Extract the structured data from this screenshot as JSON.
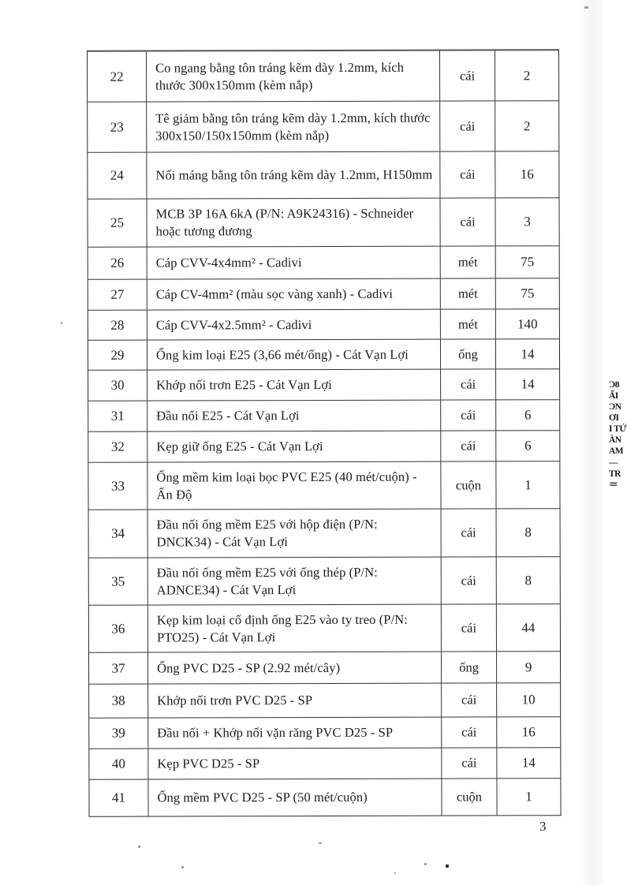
{
  "page": {
    "number": "3"
  },
  "table": {
    "rows": [
      {
        "no": "22",
        "desc": "Co ngang bằng tôn tráng kẽm dày 1.2mm, kích thước 300x150mm (kèm nắp)",
        "unit": "cái",
        "qty": "2"
      },
      {
        "no": "23",
        "desc": "Tê giảm bằng tôn tráng kẽm dày 1.2mm, kích thước 300x150/150x150mm (kèm nắp)",
        "unit": "cái",
        "qty": "2"
      },
      {
        "no": "24",
        "desc": "Nối máng bằng tôn tráng kẽm dày 1.2mm, H150mm",
        "unit": "cái",
        "qty": "16"
      },
      {
        "no": "25",
        "desc": "MCB 3P 16A 6kA (P/N: A9K24316) - Schneider hoặc tương đương",
        "unit": "cái",
        "qty": "3"
      },
      {
        "no": "26",
        "desc": "Cáp CVV-4x4mm² - Cadivi",
        "unit": "mét",
        "qty": "75"
      },
      {
        "no": "27",
        "desc": "Cáp CV-4mm² (màu sọc vàng xanh) - Cadivi",
        "unit": "mét",
        "qty": "75"
      },
      {
        "no": "28",
        "desc": "Cáp CVV-4x2.5mm² - Cadivi",
        "unit": "mét",
        "qty": "140"
      },
      {
        "no": "29",
        "desc": "Ống kim loại E25 (3,66 mét/ống) - Cát Vạn Lợi",
        "unit": "ống",
        "qty": "14"
      },
      {
        "no": "30",
        "desc": "Khớp nối trơn E25 - Cát Vạn Lợi",
        "unit": "cái",
        "qty": "14"
      },
      {
        "no": "31",
        "desc": "Đầu nối E25 - Cát Vạn Lợi",
        "unit": "cái",
        "qty": "6"
      },
      {
        "no": "32",
        "desc": "Kẹp giữ ống E25 - Cát Vạn Lợi",
        "unit": "cái",
        "qty": "6"
      },
      {
        "no": "33",
        "desc": "Ống mềm kim loại bọc PVC E25 (40 mét/cuộn) - Ấn Độ",
        "unit": "cuộn",
        "qty": "1"
      },
      {
        "no": "34",
        "desc": "Đầu nối ống mềm E25 với hộp điện (P/N: DNCK34) - Cát Vạn Lợi",
        "unit": "cái",
        "qty": "8"
      },
      {
        "no": "35",
        "desc": "Đầu nối ống mềm E25 với ống thép (P/N: ADNCE34) - Cát Vạn Lợi",
        "unit": "cái",
        "qty": "8"
      },
      {
        "no": "36",
        "desc": "Kẹp kim loại cố định ống E25 vào ty treo (P/N: PTO25) - Cát Vạn Lợi",
        "unit": "cái",
        "qty": "44"
      },
      {
        "no": "37",
        "desc": "Ống PVC D25 - SP (2.92 mét/cây)",
        "unit": "ống",
        "qty": "9"
      },
      {
        "no": "38",
        "desc": "Khớp nối trơn PVC D25 - SP",
        "unit": "cái",
        "qty": "10"
      },
      {
        "no": "39",
        "desc": "Đầu nối + Khớp nối vặn răng PVC D25 - SP",
        "unit": "cái",
        "qty": "16"
      },
      {
        "no": "40",
        "desc": "Kẹp PVC D25 - SP",
        "unit": "cái",
        "qty": "14"
      },
      {
        "no": "41",
        "desc": "Ống mềm PVC D25 - SP (50 mét/cuộn)",
        "unit": "cuộn",
        "qty": "1"
      }
    ]
  },
  "edge_artifact": {
    "fragments": [
      "‾",
      "Ɔ8",
      "ẤI",
      "ƆN",
      "ƠI",
      "I TỨ",
      "ÀN",
      "AM",
      "—",
      "TR",
      "＝"
    ]
  }
}
